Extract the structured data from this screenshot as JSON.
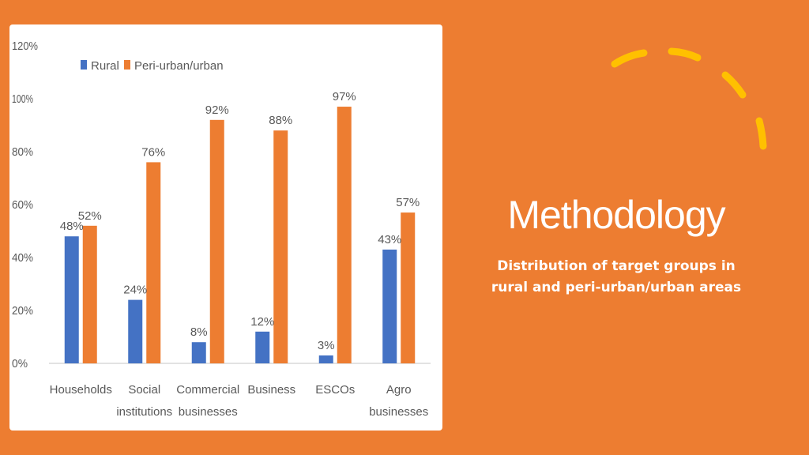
{
  "slide": {
    "title": "Methodology",
    "subtitle_line1": "Distribution of target groups in",
    "subtitle_line2": "rural and peri-urban/urban areas"
  },
  "colors": {
    "background": "#ED7D31",
    "rural": "#4472C4",
    "urban": "#ED7D31",
    "card": "#FFFFFF"
  },
  "chart_data": {
    "type": "bar",
    "categories": [
      [
        "Households"
      ],
      [
        "Social",
        "institutions"
      ],
      [
        "Commercial",
        "businesses"
      ],
      [
        "Business"
      ],
      [
        "ESCOs"
      ],
      [
        "Agro",
        "businesses"
      ]
    ],
    "series": [
      {
        "name": "Rural",
        "color": "#4472C4",
        "values": [
          48,
          24,
          8,
          12,
          3,
          43
        ],
        "labels": [
          "48%",
          "24%",
          "8%",
          "12%",
          "3%",
          "43%"
        ]
      },
      {
        "name": "Peri-urban/urban",
        "color": "#ED7D31",
        "values": [
          52,
          76,
          92,
          88,
          97,
          57
        ],
        "labels": [
          "52%",
          "76%",
          "92%",
          "88%",
          "97%",
          "57%"
        ]
      }
    ],
    "ylim": [
      0,
      120
    ],
    "yticks": [
      0,
      20,
      40,
      60,
      80,
      100,
      120
    ],
    "ytick_labels": [
      "0%",
      "20%",
      "40%",
      "60%",
      "80%",
      "100%",
      "120%"
    ],
    "legend_position": "top-left",
    "grid": false
  }
}
